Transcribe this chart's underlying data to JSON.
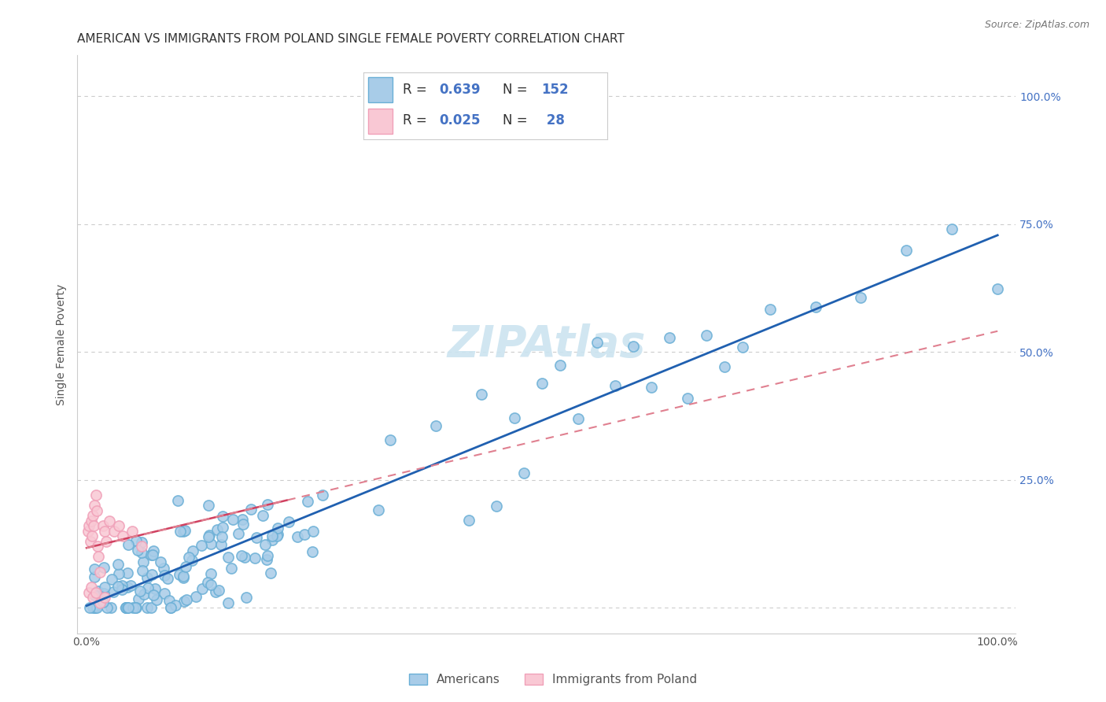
{
  "title": "AMERICAN VS IMMIGRANTS FROM POLAND SINGLE FEMALE POVERTY CORRELATION CHART",
  "source": "Source: ZipAtlas.com",
  "ylabel": "Single Female Poverty",
  "blue_marker_color": "#a8cce8",
  "blue_marker_edge": "#6aafd6",
  "pink_marker_color": "#f9c8d4",
  "pink_marker_edge": "#f0a0b8",
  "line_blue": "#2060b0",
  "line_pink_solid": "#d04060",
  "line_pink_dash": "#e08090",
  "watermark_color": "#cce4f0",
  "title_color": "#333333",
  "tick_color_blue": "#4472c4",
  "grid_color": "#cccccc",
  "legend_R_color": "#333333",
  "legend_N_color": "#4472c4",
  "legend_val_color": "#4472c4",
  "source_color": "#777777"
}
